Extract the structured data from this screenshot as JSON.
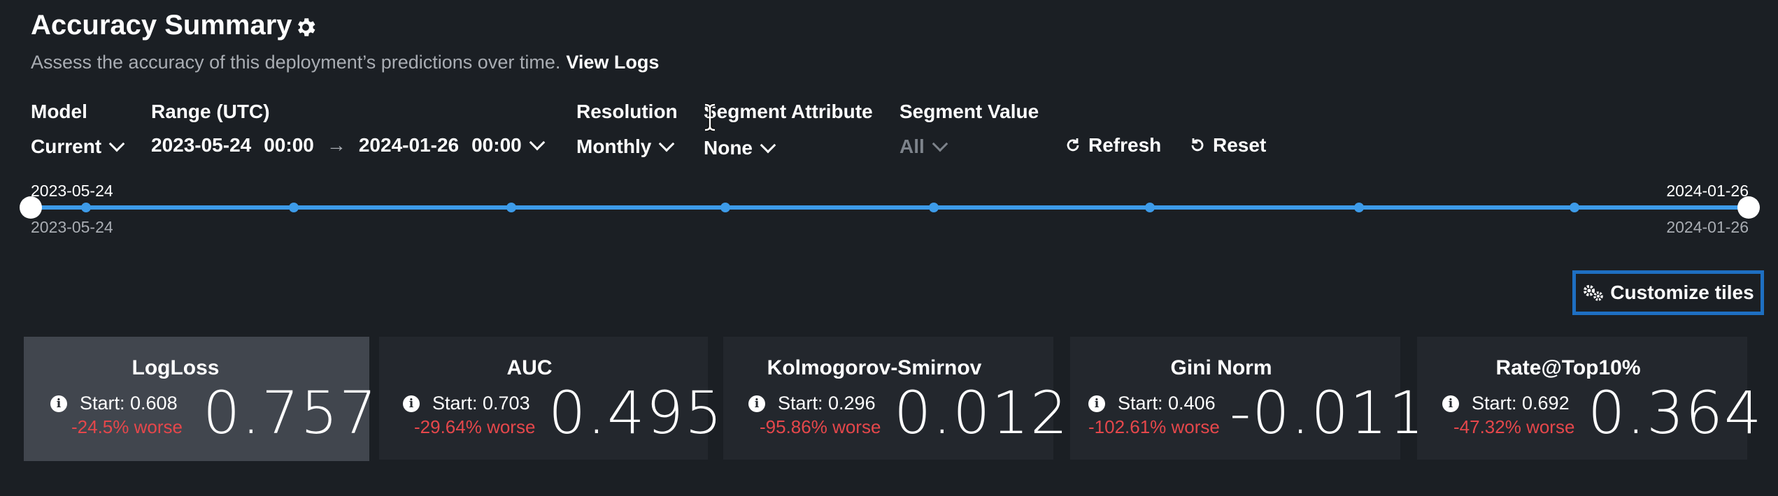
{
  "header": {
    "title": "Accuracy Summary",
    "subtitle": "Assess the accuracy of this deployment’s predictions over time.",
    "view_logs": "View Logs"
  },
  "filters": {
    "model": {
      "label": "Model",
      "value": "Current"
    },
    "range": {
      "label": "Range (UTC)",
      "start_date": "2023-05-24",
      "start_time": "00:00",
      "arrow": "→",
      "end_date": "2024-01-26",
      "end_time": "00:00"
    },
    "resolution": {
      "label": "Resolution",
      "value": "Monthly"
    },
    "segment_attribute": {
      "label": "Segment Attribute",
      "value": "None"
    },
    "segment_value": {
      "label": "Segment Value",
      "value": "All"
    }
  },
  "actions": {
    "refresh": "Refresh",
    "reset": "Reset",
    "customize": "Customize tiles"
  },
  "slider": {
    "start_top": "2023-05-24",
    "start_bottom": "2023-05-24",
    "end_top": "2024-01-26",
    "end_bottom": "2024-01-26",
    "accent": "#3d9be9"
  },
  "tiles": [
    {
      "name": "LogLoss",
      "start": "Start: 0.608",
      "change": "-24.5% worse",
      "value": "0.757",
      "selected": true
    },
    {
      "name": "AUC",
      "start": "Start: 0.703",
      "change": "-29.64% worse",
      "value": "0.495"
    },
    {
      "name": "Kolmogorov-Smirnov",
      "start": "Start: 0.296",
      "change": "-95.86% worse",
      "value": "0.012"
    },
    {
      "name": "Gini Norm",
      "start": "Start: 0.406",
      "change": "-102.61% worse",
      "value": "-0.011"
    },
    {
      "name": "Rate@Top10%",
      "start": "Start: 0.692",
      "change": "-47.32% worse",
      "value": "0.364"
    }
  ],
  "colors": {
    "background": "#1b1f24",
    "tile": "#23272d",
    "tile_selected": "#41464e",
    "negative": "#e5474b",
    "focus_border": "#1e6fc2"
  }
}
